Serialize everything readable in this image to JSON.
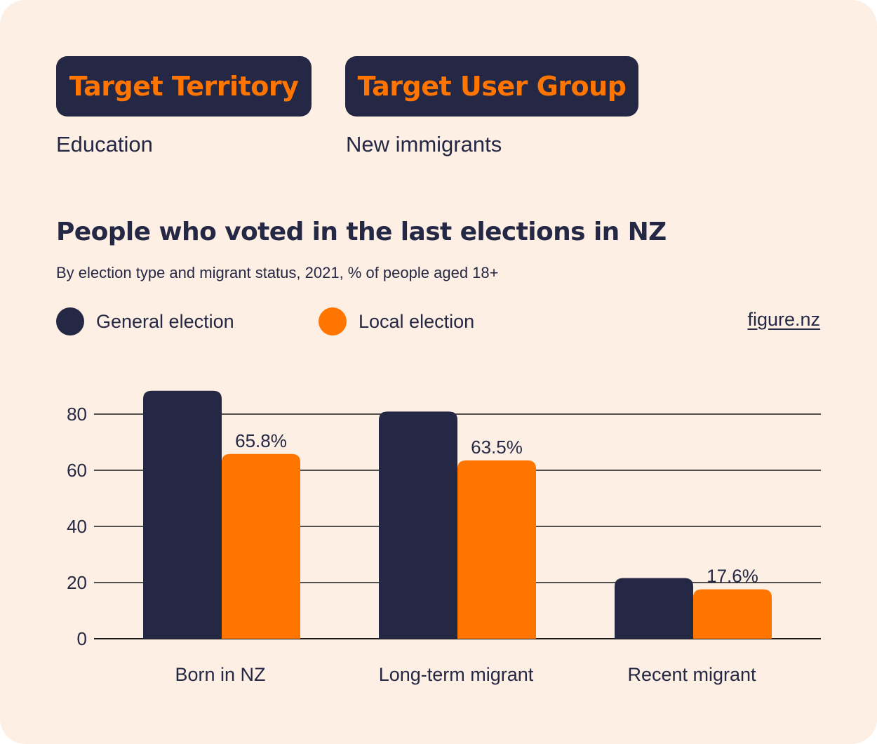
{
  "colors": {
    "background": "#fdefe4",
    "navy": "#252845",
    "orange": "#ff7500"
  },
  "tags": {
    "territory_label": "Target Territory",
    "territory_value": "Education",
    "user_group_label": "Target User Group",
    "user_group_value": "New immigrants"
  },
  "source": "figure.nz",
  "chart_data": {
    "type": "bar",
    "title": "People who voted in the last elections in NZ",
    "subtitle": "By election type and migrant status, 2021, % of people aged 18+",
    "xlabel": "",
    "ylabel": "",
    "categories": [
      "Born in NZ",
      "Long-term migrant",
      "Recent migrant"
    ],
    "series": [
      {
        "name": "General election",
        "color": "#252845",
        "values": [
          88.3,
          80.9,
          21.6
        ],
        "labels": [
          "",
          "",
          ""
        ]
      },
      {
        "name": "Local election",
        "color": "#ff7500",
        "values": [
          65.8,
          63.5,
          17.6
        ],
        "labels": [
          "65.8%",
          "63.5%",
          "17.6%"
        ]
      }
    ],
    "yticks": [
      0,
      20,
      40,
      60,
      80
    ],
    "ylim": [
      0,
      90
    ],
    "grid": true,
    "legend": "top-left"
  }
}
